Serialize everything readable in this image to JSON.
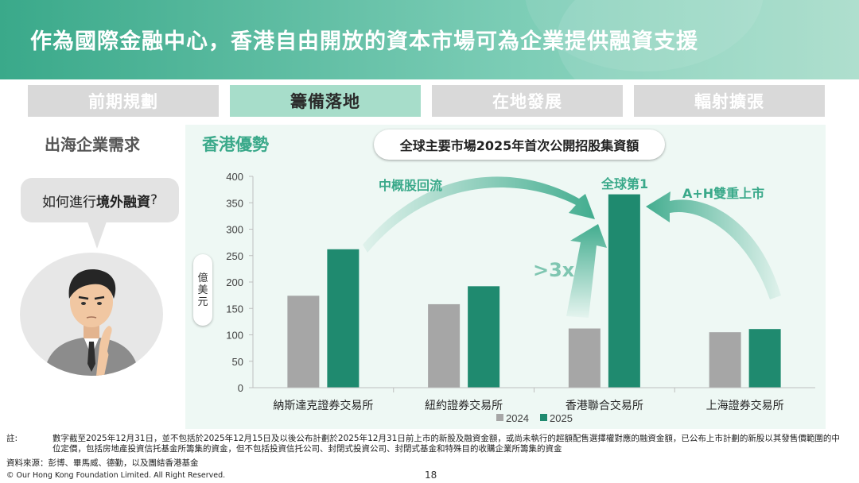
{
  "header": {
    "title": "作為國際金融中心，香港自由開放的資本市場可為企業提供融資支援"
  },
  "tabs": [
    {
      "label": "前期規劃",
      "active": false
    },
    {
      "label": "籌備落地",
      "active": true
    },
    {
      "label": "在地發展",
      "active": false
    },
    {
      "label": "輻射擴張",
      "active": false
    }
  ],
  "left_panel": {
    "title": "出海企業需求",
    "bubble_prefix": "如何進行",
    "bubble_bold": "境外融資",
    "bubble_suffix": "?"
  },
  "right_panel": {
    "title": "香港優勢",
    "unit_label": [
      "億",
      "美",
      "元"
    ]
  },
  "annotations": {
    "china_concept": "中概股回流",
    "global_first": "全球第1",
    "ah_listing": "A+H雙重上市",
    "growth": ">3x"
  },
  "colors": {
    "series_2024": "#a6a6a6",
    "series_2025": "#1f8a6f",
    "accent": "#3aa98a"
  },
  "chart_data": {
    "type": "bar",
    "title": "全球主要市場2025年首次公開招股集資額",
    "categories": [
      "納斯達克證券交易所",
      "紐約證券交易所",
      "香港聯合交易所",
      "上海證券交易所"
    ],
    "series": [
      {
        "name": "2024",
        "values": [
          174,
          158,
          112,
          105
        ]
      },
      {
        "name": "2025",
        "values": [
          262,
          192,
          366,
          111
        ]
      }
    ],
    "ylim": [
      0,
      400
    ],
    "yticks": [
      0,
      50,
      100,
      150,
      200,
      250,
      300,
      350,
      400
    ],
    "grid": false,
    "legend": "bottom-center"
  },
  "footer": {
    "note_label": "註:",
    "note_text": "數字截至2025年12月31日，並不包括於2025年12月15日及以後公布計劃於2025年12月31日前上市的新股及融資金額，或尚未執行的超額配售選擇權對應的融資金額，已公布上市計劃的新股以其發售價範圍的中位定價，包括房地產投資信托基金所籌集的資金，但不包括投資信托公司、封閉式投資公司、封閉式基金和特殊目的收購企業所籌集的資金",
    "source": "資料來源：彭博、畢馬威、德勤，以及團結香港基金",
    "copyright": "© Our Hong Kong Foundation Limited. All Right Reserved.",
    "page": "18"
  }
}
